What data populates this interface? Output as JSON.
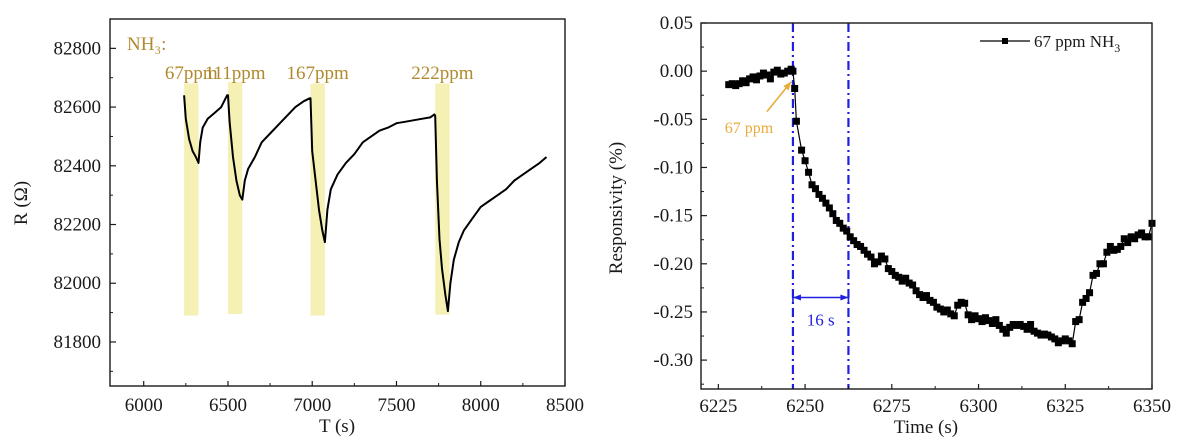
{
  "chart_data": [
    {
      "type": "line",
      "title": "",
      "xlabel": "T (s)",
      "ylabel": "R (Ω)",
      "xlim": [
        5800,
        8500
      ],
      "ylim": [
        81650,
        82900
      ],
      "xticks": [
        6000,
        6500,
        7000,
        7500,
        8000,
        8500
      ],
      "xtick_labels": [
        "6000",
        "6500",
        "7000",
        "7500",
        "8000",
        "8500"
      ],
      "yticks": [
        81800,
        82000,
        82200,
        82400,
        82600,
        82800
      ],
      "ytick_labels": [
        "81800",
        "82000",
        "82200",
        "82400",
        "82600",
        "82800"
      ],
      "grid": false,
      "annotation_title": "NH₃:",
      "annotation_color": "#b08a2e",
      "exposure_band_color": "#f5f0b4",
      "exposures": [
        {
          "label": "67ppm",
          "start": 6240,
          "end": 6325,
          "band_bottom": 81890,
          "band_top": 82680
        },
        {
          "label": "111ppm",
          "start": 6500,
          "end": 6585,
          "band_bottom": 81895,
          "band_top": 82685
        },
        {
          "label": "167ppm",
          "start": 6990,
          "end": 7075,
          "band_bottom": 81890,
          "band_top": 82680
        },
        {
          "label": "222ppm",
          "start": 7730,
          "end": 7815,
          "band_bottom": 81893,
          "band_top": 82680
        }
      ],
      "series": [
        {
          "name": "R",
          "color": "#000000",
          "points": [
            [
              6240,
              82640
            ],
            [
              6250,
              82560
            ],
            [
              6270,
              82490
            ],
            [
              6290,
              82450
            ],
            [
              6310,
              82430
            ],
            [
              6325,
              82410
            ],
            [
              6335,
              82480
            ],
            [
              6350,
              82530
            ],
            [
              6380,
              82560
            ],
            [
              6420,
              82580
            ],
            [
              6460,
              82600
            ],
            [
              6495,
              82640
            ],
            [
              6500,
              82640
            ],
            [
              6510,
              82550
            ],
            [
              6530,
              82430
            ],
            [
              6550,
              82350
            ],
            [
              6570,
              82300
            ],
            [
              6585,
              82285
            ],
            [
              6600,
              82350
            ],
            [
              6620,
              82390
            ],
            [
              6660,
              82430
            ],
            [
              6700,
              82480
            ],
            [
              6750,
              82510
            ],
            [
              6800,
              82540
            ],
            [
              6850,
              82570
            ],
            [
              6900,
              82600
            ],
            [
              6950,
              82620
            ],
            [
              6985,
              82630
            ],
            [
              6990,
              82630
            ],
            [
              7000,
              82450
            ],
            [
              7020,
              82350
            ],
            [
              7040,
              82250
            ],
            [
              7060,
              82180
            ],
            [
              7075,
              82140
            ],
            [
              7090,
              82250
            ],
            [
              7110,
              82320
            ],
            [
              7150,
              82370
            ],
            [
              7200,
              82410
            ],
            [
              7250,
              82440
            ],
            [
              7300,
              82480
            ],
            [
              7350,
              82500
            ],
            [
              7400,
              82520
            ],
            [
              7450,
              82530
            ],
            [
              7500,
              82545
            ],
            [
              7550,
              82550
            ],
            [
              7600,
              82555
            ],
            [
              7650,
              82560
            ],
            [
              7700,
              82565
            ],
            [
              7725,
              82575
            ],
            [
              7730,
              82570
            ],
            [
              7740,
              82350
            ],
            [
              7755,
              82150
            ],
            [
              7770,
              82050
            ],
            [
              7790,
              81960
            ],
            [
              7805,
              81905
            ],
            [
              7820,
              82000
            ],
            [
              7840,
              82080
            ],
            [
              7870,
              82140
            ],
            [
              7900,
              82180
            ],
            [
              7950,
              82220
            ],
            [
              8000,
              82260
            ],
            [
              8050,
              82280
            ],
            [
              8100,
              82300
            ],
            [
              8150,
              82320
            ],
            [
              8200,
              82350
            ],
            [
              8250,
              82370
            ],
            [
              8300,
              82390
            ],
            [
              8350,
              82410
            ],
            [
              8390,
              82430
            ]
          ]
        }
      ]
    },
    {
      "type": "line",
      "title": "",
      "xlabel": "Time (s)",
      "ylabel": "Responsivity (%)",
      "xlim": [
        6220,
        6350
      ],
      "ylim": [
        -0.33,
        0.05
      ],
      "xticks": [
        6225,
        6250,
        6275,
        6300,
        6325,
        6350
      ],
      "xtick_labels": [
        "6225",
        "6250",
        "6275",
        "6300",
        "6325",
        "6350"
      ],
      "yticks": [
        0.05,
        0.0,
        -0.05,
        -0.1,
        -0.15,
        -0.2,
        -0.25,
        -0.3
      ],
      "ytick_labels": [
        "0.05",
        "0.00",
        "-0.05",
        "-0.10",
        "-0.15",
        "-0.20",
        "-0.25",
        "-0.30"
      ],
      "grid": false,
      "legend": {
        "placement": "top-right",
        "entries": [
          "67 ppm NH₃"
        ]
      },
      "legend_label_main": "67 ppm NH",
      "legend_label_sub": "3",
      "vlines": [
        {
          "x": 6246.5,
          "color": "#1f1fe0",
          "style": "dash-dot"
        },
        {
          "x": 6262.5,
          "color": "#1f1fe0",
          "style": "dash-dot"
        }
      ],
      "interval_annotation": {
        "from": 6246.5,
        "to": 6262.5,
        "y": -0.235,
        "label": "16 s",
        "color": "#1f1fe0"
      },
      "arrow_annotation": {
        "label": "67 ppm",
        "color": "#e8ac3c",
        "from": [
          6239,
          -0.042
        ],
        "to": [
          6246,
          -0.011
        ]
      },
      "series": [
        {
          "name": "67 ppm NH₃",
          "color": "#000000",
          "marker": "square",
          "points": [
            [
              6228,
              -0.014
            ],
            [
              6229,
              -0.013
            ],
            [
              6230,
              -0.015
            ],
            [
              6231,
              -0.013
            ],
            [
              6232,
              -0.01
            ],
            [
              6233,
              -0.012
            ],
            [
              6234,
              -0.008
            ],
            [
              6235,
              -0.006
            ],
            [
              6236,
              -0.009
            ],
            [
              6237,
              -0.005
            ],
            [
              6238,
              -0.002
            ],
            [
              6239,
              -0.004
            ],
            [
              6240,
              -0.008
            ],
            [
              6241,
              -0.001
            ],
            [
              6242,
              0.001
            ],
            [
              6243,
              -0.003
            ],
            [
              6244,
              -0.002
            ],
            [
              6245,
              0.0
            ],
            [
              6246,
              0.002
            ],
            [
              6246.5,
              0.0
            ],
            [
              6247,
              -0.018
            ],
            [
              6247.5,
              -0.052
            ],
            [
              6249,
              -0.082
            ],
            [
              6250,
              -0.093
            ],
            [
              6251,
              -0.105
            ],
            [
              6252,
              -0.118
            ],
            [
              6253,
              -0.122
            ],
            [
              6254,
              -0.128
            ],
            [
              6255,
              -0.132
            ],
            [
              6256,
              -0.137
            ],
            [
              6257,
              -0.142
            ],
            [
              6258,
              -0.148
            ],
            [
              6259,
              -0.155
            ],
            [
              6260,
              -0.158
            ],
            [
              6261,
              -0.163
            ],
            [
              6262,
              -0.166
            ],
            [
              6263,
              -0.172
            ],
            [
              6264,
              -0.176
            ],
            [
              6265,
              -0.18
            ],
            [
              6266,
              -0.182
            ],
            [
              6267,
              -0.186
            ],
            [
              6268,
              -0.19
            ],
            [
              6269,
              -0.193
            ],
            [
              6270,
              -0.2
            ],
            [
              6271,
              -0.198
            ],
            [
              6272,
              -0.192
            ],
            [
              6273,
              -0.195
            ],
            [
              6274,
              -0.205
            ],
            [
              6275,
              -0.208
            ],
            [
              6276,
              -0.212
            ],
            [
              6277,
              -0.214
            ],
            [
              6278,
              -0.218
            ],
            [
              6279,
              -0.215
            ],
            [
              6280,
              -0.22
            ],
            [
              6281,
              -0.222
            ],
            [
              6282,
              -0.228
            ],
            [
              6283,
              -0.232
            ],
            [
              6284,
              -0.235
            ],
            [
              6285,
              -0.233
            ],
            [
              6286,
              -0.238
            ],
            [
              6287,
              -0.24
            ],
            [
              6288,
              -0.245
            ],
            [
              6289,
              -0.247
            ],
            [
              6290,
              -0.25
            ],
            [
              6291,
              -0.248
            ],
            [
              6292,
              -0.252
            ],
            [
              6293,
              -0.254
            ],
            [
              6294,
              -0.243
            ],
            [
              6295,
              -0.24
            ],
            [
              6296,
              -0.241
            ],
            [
              6297,
              -0.253
            ],
            [
              6298,
              -0.258
            ],
            [
              6299,
              -0.254
            ],
            [
              6300,
              -0.257
            ],
            [
              6301,
              -0.26
            ],
            [
              6302,
              -0.256
            ],
            [
              6303,
              -0.259
            ],
            [
              6304,
              -0.262
            ],
            [
              6305,
              -0.258
            ],
            [
              6306,
              -0.264
            ],
            [
              6307,
              -0.268
            ],
            [
              6308,
              -0.272
            ],
            [
              6309,
              -0.266
            ],
            [
              6310,
              -0.263
            ],
            [
              6311,
              -0.264
            ],
            [
              6312,
              -0.263
            ],
            [
              6313,
              -0.265
            ],
            [
              6314,
              -0.268
            ],
            [
              6315,
              -0.263
            ],
            [
              6316,
              -0.27
            ],
            [
              6317,
              -0.272
            ],
            [
              6318,
              -0.274
            ],
            [
              6319,
              -0.273
            ],
            [
              6320,
              -0.274
            ],
            [
              6321,
              -0.276
            ],
            [
              6322,
              -0.278
            ],
            [
              6323,
              -0.282
            ],
            [
              6324,
              -0.28
            ],
            [
              6325,
              -0.278
            ],
            [
              6326,
              -0.28
            ],
            [
              6327,
              -0.283
            ],
            [
              6328,
              -0.26
            ],
            [
              6329,
              -0.258
            ],
            [
              6330,
              -0.24
            ],
            [
              6331,
              -0.236
            ],
            [
              6332,
              -0.23
            ],
            [
              6333,
              -0.212
            ],
            [
              6334,
              -0.21
            ],
            [
              6335,
              -0.2
            ],
            [
              6336,
              -0.2
            ],
            [
              6337,
              -0.188
            ],
            [
              6338,
              -0.182
            ],
            [
              6339,
              -0.186
            ],
            [
              6340,
              -0.185
            ],
            [
              6341,
              -0.182
            ],
            [
              6342,
              -0.174
            ],
            [
              6343,
              -0.178
            ],
            [
              6344,
              -0.172
            ],
            [
              6345,
              -0.174
            ],
            [
              6346,
              -0.17
            ],
            [
              6347,
              -0.168
            ],
            [
              6348,
              -0.172
            ],
            [
              6349,
              -0.172
            ],
            [
              6350,
              -0.158
            ]
          ]
        }
      ]
    }
  ]
}
